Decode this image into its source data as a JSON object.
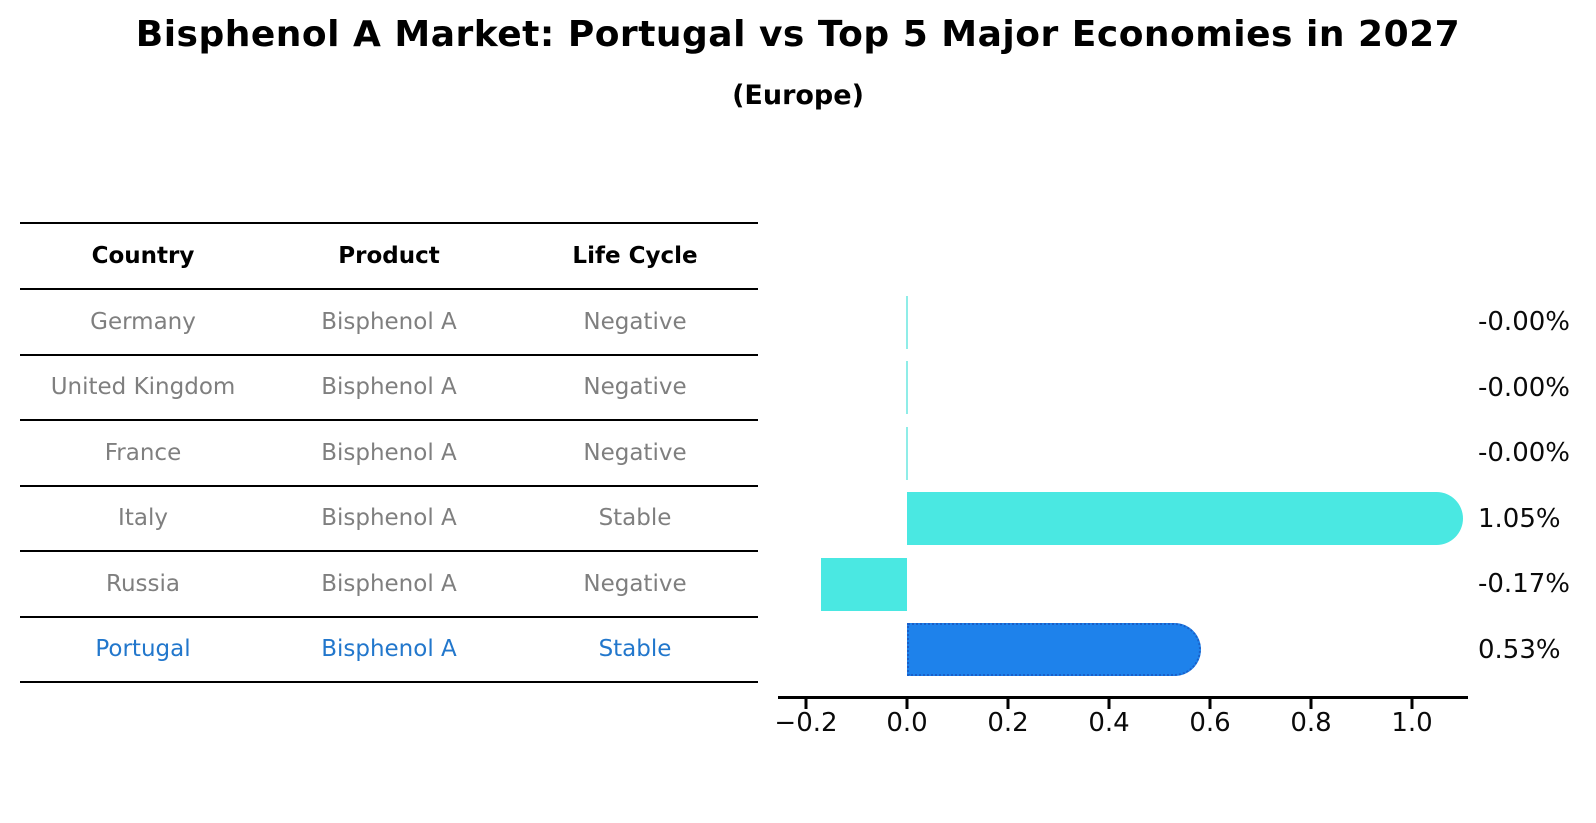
{
  "title": "Bisphenol A Market: Portugal vs Top 5 Major Economies in 2027",
  "subtitle": "(Europe)",
  "table": {
    "headers": [
      "Country",
      "Product",
      "Life Cycle"
    ],
    "rows": [
      {
        "country": "Germany",
        "product": "Bisphenol A",
        "life_cycle": "Negative",
        "highlighted": false
      },
      {
        "country": "United Kingdom",
        "product": "Bisphenol A",
        "life_cycle": "Negative",
        "highlighted": false
      },
      {
        "country": "France",
        "product": "Bisphenol A",
        "life_cycle": "Negative",
        "highlighted": false
      },
      {
        "country": "Italy",
        "product": "Bisphenol A",
        "life_cycle": "Stable",
        "highlighted": false
      },
      {
        "country": "Russia",
        "product": "Bisphenol A",
        "life_cycle": "Negative",
        "highlighted": false
      },
      {
        "country": "Portugal",
        "product": "Bisphenol A",
        "life_cycle": "Stable",
        "highlighted": true
      }
    ]
  },
  "chart_data": {
    "type": "bar",
    "orientation": "horizontal",
    "categories": [
      "Germany",
      "United Kingdom",
      "France",
      "Italy",
      "Russia",
      "Portugal"
    ],
    "values": [
      -0.0,
      -0.0,
      -0.0,
      1.05,
      -0.17,
      0.53
    ],
    "value_labels": [
      "-0.00%",
      "-0.00%",
      "-0.00%",
      "1.05%",
      "-0.17%",
      "0.53%"
    ],
    "tick_values": [
      -0.2,
      0.0,
      0.2,
      0.4,
      0.6,
      0.8,
      1.0
    ],
    "x_ticks": [
      "−0.2",
      "0.0",
      "0.2",
      "0.4",
      "0.6",
      "0.8",
      "1.0"
    ],
    "xlim": [
      -0.26,
      1.11
    ],
    "grid": false,
    "legend": "none",
    "highlight_index": 5,
    "colors": {
      "bar": "#4AE8E2",
      "zero_bar": "#8FEDE8",
      "highlight_bar": "#1E82EB",
      "highlight_edge": "#1a5fc8",
      "highlight_text": "#2277CC",
      "table_text": "#7f7f7f",
      "axis": "#000000"
    }
  }
}
